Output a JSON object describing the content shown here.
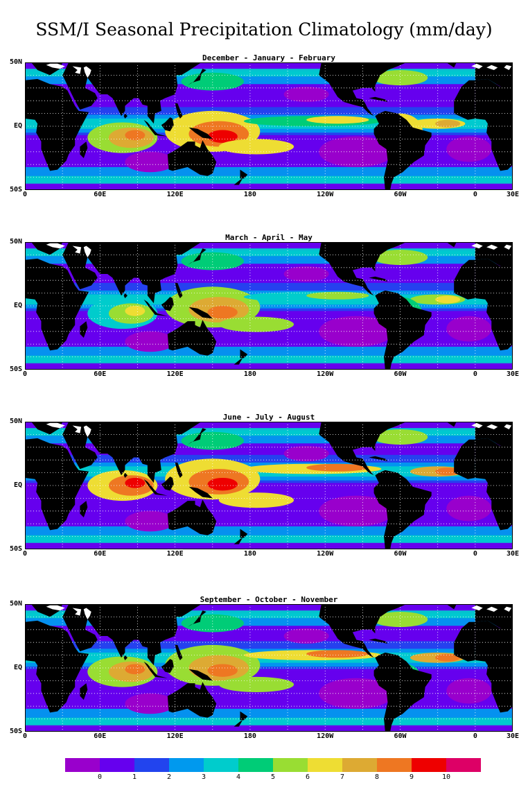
{
  "title": "SSM/I Seasonal Precipitation Climatology  (mm/day)",
  "panels": [
    {
      "title": "December - January - February"
    },
    {
      "title": "March - April - May"
    },
    {
      "title": "June - July - August"
    },
    {
      "title": "September - October - November"
    }
  ],
  "lat_labels": [
    "50N",
    "EQ",
    "50S"
  ],
  "lon_labels": [
    "0",
    "60E",
    "120E",
    "180",
    "120W",
    "60W",
    "0",
    "30E"
  ],
  "colorbar": {
    "colors": [
      "#9900cc",
      "#6600ee",
      "#2244ee",
      "#0099ee",
      "#00cccc",
      "#00cc77",
      "#99dd33",
      "#eedd33",
      "#ddaa33",
      "#ee7722",
      "#ee0000",
      "#dd0066"
    ],
    "labels": [
      "0",
      "1",
      "2",
      "3",
      "4",
      "5",
      "6",
      "7",
      "8",
      "9",
      "10"
    ]
  },
  "colors": {
    "land": "#000000",
    "ice": "#ffffff",
    "grid": "#ffffff",
    "ocean_base": "#6600ee"
  }
}
